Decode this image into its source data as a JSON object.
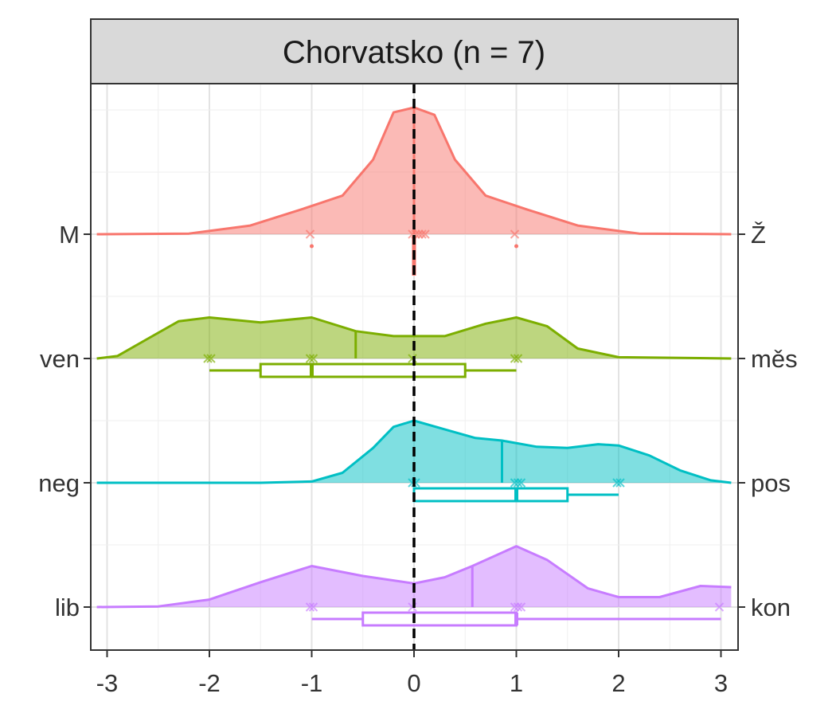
{
  "chart_data": {
    "type": "density-ridge",
    "title": "Chorvatsko (n = 7)",
    "xlim": [
      -3.1,
      3.1
    ],
    "x_ticks": [
      "-3",
      "-2",
      "-1",
      "0",
      "1",
      "2",
      "3"
    ],
    "x_tick_values": [
      -3,
      -2,
      -1,
      0,
      1,
      2,
      3
    ],
    "reference_line_x": 0,
    "grid": true,
    "legend": "none",
    "rows": [
      {
        "left_label": "lib",
        "right_label": "kon",
        "color": "#C77CFF",
        "points": [
          -1,
          -1,
          0,
          1,
          1,
          1,
          3
        ],
        "mean": 0.57,
        "density": [
          [
            -3.1,
            0
          ],
          [
            -2.5,
            0.005
          ],
          [
            -2,
            0.06
          ],
          [
            -1.5,
            0.2
          ],
          [
            -1,
            0.33
          ],
          [
            -0.5,
            0.25
          ],
          [
            0,
            0.19
          ],
          [
            0.3,
            0.24
          ],
          [
            0.57,
            0.33
          ],
          [
            1,
            0.49
          ],
          [
            1.3,
            0.38
          ],
          [
            1.7,
            0.15
          ],
          [
            2,
            0.08
          ],
          [
            2.4,
            0.08
          ],
          [
            2.8,
            0.17
          ],
          [
            3.1,
            0.16
          ]
        ],
        "box": {
          "min": -1,
          "q1": -0.5,
          "median": 1,
          "q3": 1,
          "max": 3
        }
      },
      {
        "left_label": "neg",
        "right_label": "pos",
        "color": "#00BFC4",
        "points": [
          0,
          0,
          1,
          1,
          1,
          2,
          2
        ],
        "mean": 0.86,
        "density": [
          [
            -3.1,
            0
          ],
          [
            -1.5,
            0
          ],
          [
            -1,
            0.01
          ],
          [
            -0.7,
            0.08
          ],
          [
            -0.4,
            0.28
          ],
          [
            -0.2,
            0.45
          ],
          [
            0,
            0.5
          ],
          [
            0.3,
            0.43
          ],
          [
            0.6,
            0.36
          ],
          [
            0.86,
            0.34
          ],
          [
            1.2,
            0.29
          ],
          [
            1.5,
            0.28
          ],
          [
            1.8,
            0.31
          ],
          [
            2,
            0.3
          ],
          [
            2.3,
            0.22
          ],
          [
            2.6,
            0.1
          ],
          [
            2.9,
            0.02
          ],
          [
            3.1,
            0
          ]
        ],
        "box": {
          "min": 0,
          "q1": 0,
          "median": 1,
          "q3": 1.5,
          "max": 2
        }
      },
      {
        "left_label": "ven",
        "right_label": "měs",
        "color": "#7CAE00",
        "points": [
          -2,
          -2,
          -1,
          -1,
          0,
          1,
          1
        ],
        "mean": -0.57,
        "density": [
          [
            -3.1,
            0
          ],
          [
            -2.9,
            0.02
          ],
          [
            -2.6,
            0.16
          ],
          [
            -2.3,
            0.3
          ],
          [
            -2,
            0.33
          ],
          [
            -1.5,
            0.29
          ],
          [
            -1,
            0.33
          ],
          [
            -0.57,
            0.22
          ],
          [
            -0.2,
            0.18
          ],
          [
            0.3,
            0.18
          ],
          [
            0.7,
            0.28
          ],
          [
            1,
            0.33
          ],
          [
            1.3,
            0.26
          ],
          [
            1.6,
            0.08
          ],
          [
            2,
            0.01
          ],
          [
            3.1,
            0
          ]
        ],
        "box": {
          "min": -2,
          "q1": -1.5,
          "median": -1,
          "q3": 0.5,
          "max": 1
        }
      },
      {
        "left_label": "M",
        "right_label": "Ž",
        "color": "#F8766D",
        "points": [
          -1,
          0,
          0,
          0,
          0,
          0,
          1
        ],
        "mean": 0,
        "density": [
          [
            -3.1,
            0
          ],
          [
            -2.2,
            0.005
          ],
          [
            -1.6,
            0.07
          ],
          [
            -1.1,
            0.2
          ],
          [
            -0.7,
            0.31
          ],
          [
            -0.4,
            0.6
          ],
          [
            -0.2,
            0.98
          ],
          [
            0,
            1.02
          ],
          [
            0.2,
            0.96
          ],
          [
            0.4,
            0.6
          ],
          [
            0.7,
            0.31
          ],
          [
            1.1,
            0.2
          ],
          [
            1.6,
            0.07
          ],
          [
            2.2,
            0.005
          ],
          [
            3.1,
            0
          ]
        ],
        "box": {
          "min": 0,
          "q1": 0,
          "median": 0,
          "q3": 0,
          "max": 0
        },
        "outliers": [
          -1,
          1
        ]
      }
    ]
  }
}
